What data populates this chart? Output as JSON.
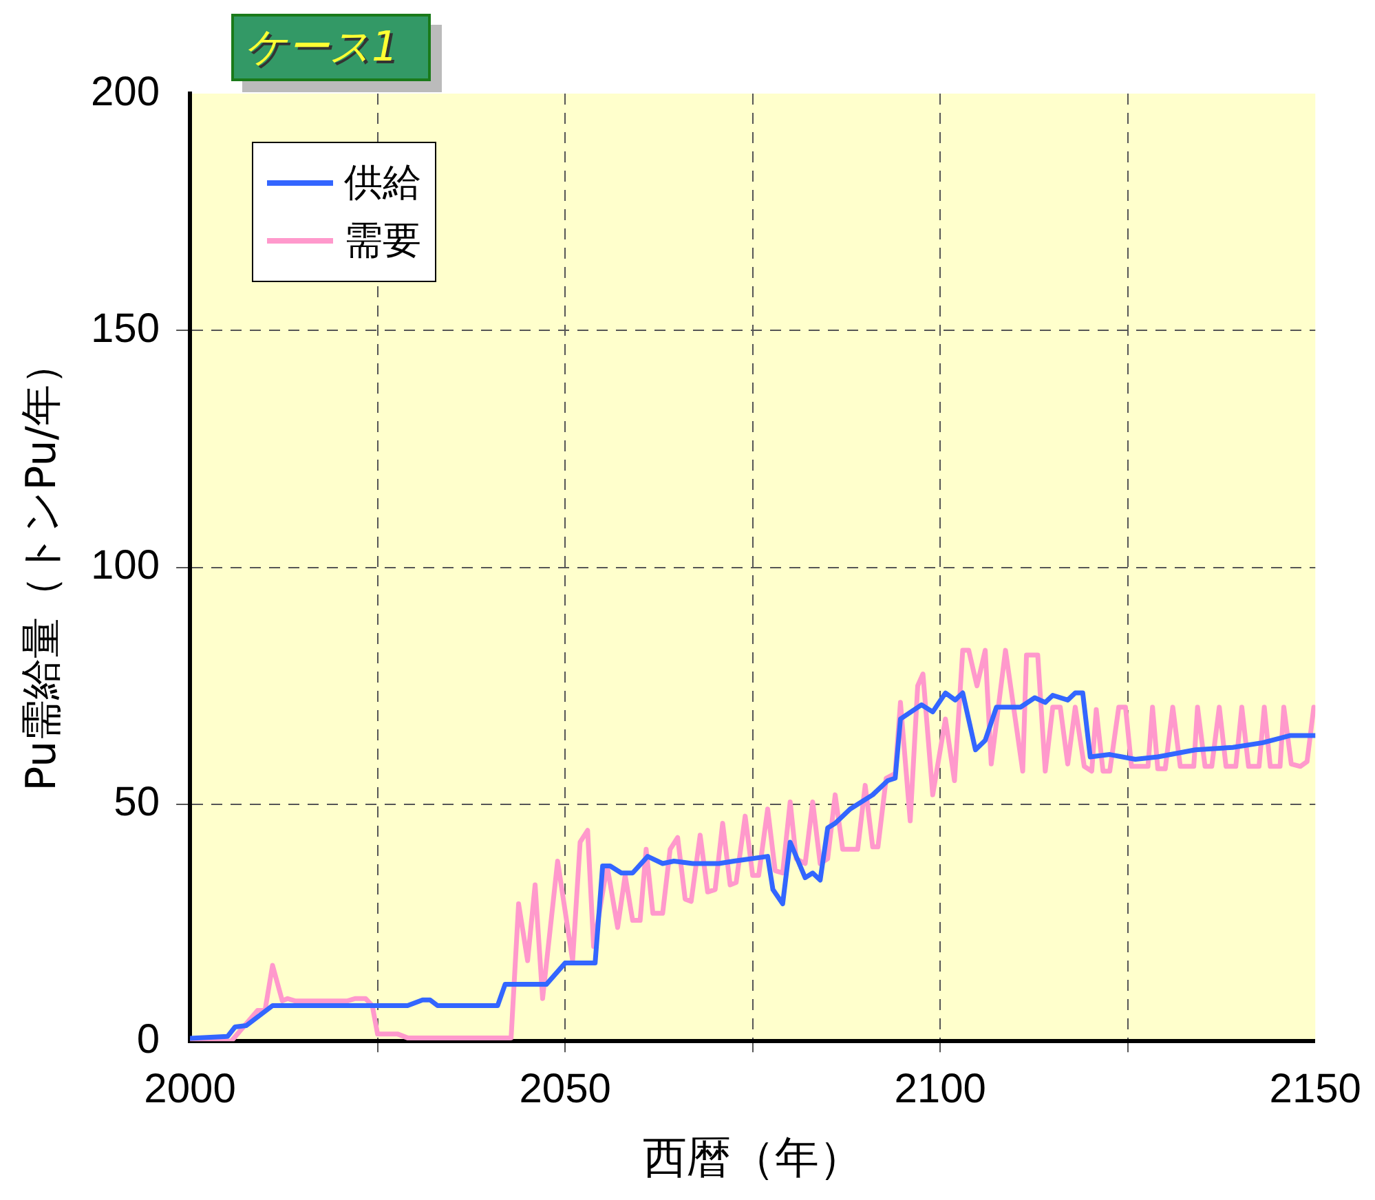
{
  "chart_data": {
    "type": "line",
    "title": "ケース1",
    "xlabel": "西暦（年）",
    "ylabel": "Pu需給量（トンPu/年）",
    "xlim": [
      2000,
      2150
    ],
    "xticks": [
      2000,
      {
        "value": 2025,
        "label": null
      },
      2050,
      {
        "value": 2075,
        "label": null
      },
      2100,
      {
        "value": 2125,
        "label": null
      },
      2150
    ],
    "ylim": [
      0,
      200
    ],
    "yticks": [
      0,
      50,
      100,
      150,
      200
    ],
    "grid": true,
    "legend": "top left",
    "marker": "none",
    "line_style": "solid",
    "series": [
      {
        "name": "供給",
        "color": "#3366ff",
        "x": [
          2000,
          2005,
          2006,
          2007.5,
          2011,
          2029,
          2031,
          2032,
          2033,
          2041,
          2042,
          2047.5,
          2050,
          2054,
          2055,
          2056,
          2057.5,
          2059,
          2061,
          2063,
          2064.5,
          2067,
          2070.5,
          2072.5,
          2077,
          2077.7,
          2079,
          2080,
          2082,
          2083,
          2084,
          2085,
          2086,
          2088,
          2091,
          2093,
          2094,
          2094.7,
          2097.5,
          2099,
          2100.7,
          2102,
          2103,
          2104.7,
          2106,
          2107.5,
          2110.7,
          2112.6,
          2114,
          2115,
          2117,
          2118,
          2119,
          2120,
          2122.6,
          2126,
          2129,
          2134,
          2139,
          2143,
          2146.6,
          2150
        ],
        "values": [
          0.6,
          1,
          3,
          3.3,
          7.5,
          7.5,
          8.7,
          8.7,
          7.5,
          7.5,
          12,
          12,
          16.5,
          16.5,
          37,
          37,
          35.5,
          35.5,
          39,
          37.5,
          38,
          37.5,
          37.5,
          38,
          39,
          32,
          29,
          42,
          34.5,
          35.5,
          34,
          45,
          46,
          49,
          52,
          55,
          55.5,
          68,
          71,
          69.5,
          73.5,
          72,
          73.5,
          61.5,
          63.5,
          70.5,
          70.5,
          72.5,
          71.5,
          73,
          72,
          73.5,
          73.5,
          60,
          60.5,
          59.5,
          60,
          61.5,
          62,
          63,
          64.5,
          64.5
        ]
      },
      {
        "name": "需要",
        "color": "#ff99cc",
        "x": [
          2000,
          2005.5,
          2009,
          2010,
          2011,
          2012.3,
          2013,
          2014,
          2021,
          2022,
          2023.4,
          2024.3,
          2025,
          2027.7,
          2029,
          2042.8,
          2043.8,
          2045,
          2046,
          2047,
          2049,
          2051,
          2052,
          2053,
          2053.8,
          2055.6,
          2057,
          2058,
          2059,
          2060,
          2060.8,
          2061.7,
          2063,
          2064,
          2065,
          2066,
          2066.8,
          2068,
          2069,
          2070,
          2071,
          2072,
          2072.8,
          2074,
          2075,
          2075.8,
          2077,
          2078,
          2079,
          2080,
          2080.8,
          2082,
          2083,
          2084,
          2085,
          2086,
          2087,
          2089,
          2090,
          2091,
          2091.7,
          2092.8,
          2094,
          2094.7,
          2096,
          2097,
          2097.7,
          2099,
          2100.7,
          2101.9,
          2103,
          2103.8,
          2104.9,
          2106,
          2106.8,
          2108.7,
          2111,
          2111.5,
          2113,
          2114,
          2115,
          2116,
          2117,
          2118,
          2119.2,
          2120.2,
          2120.8,
          2121.7,
          2122.6,
          2123.8,
          2124.7,
          2125.5,
          2127.7,
          2128.3,
          2129,
          2130,
          2131,
          2132,
          2133.8,
          2134.3,
          2135.3,
          2136.2,
          2137.2,
          2138.1,
          2139.4,
          2140.2,
          2141.1,
          2142.5,
          2143.2,
          2144,
          2145.3,
          2145.8,
          2146.8,
          2148,
          2148.9,
          2149.8
        ],
        "values": [
          0,
          0,
          6.5,
          6.5,
          16,
          8.5,
          9,
          8.5,
          8.5,
          9,
          9,
          7.5,
          1.5,
          1.5,
          0.7,
          0.7,
          29,
          17,
          33,
          9,
          38,
          17,
          42,
          44.5,
          20,
          37,
          24,
          35,
          25.5,
          25.5,
          40.5,
          27,
          27,
          40.5,
          43,
          30,
          29.5,
          43.5,
          31.5,
          32,
          46,
          33,
          33.5,
          47.5,
          35,
          35,
          49,
          36,
          35.5,
          50.5,
          38.5,
          37.5,
          50.5,
          37.5,
          38.5,
          52,
          40.5,
          40.5,
          54,
          41,
          41,
          55.5,
          56.5,
          71.5,
          46.5,
          75,
          77.5,
          52,
          68,
          55,
          82.5,
          82.5,
          75,
          82.5,
          58.5,
          82.5,
          57,
          81.5,
          81.5,
          57,
          70.5,
          70.5,
          58.5,
          70.5,
          58,
          57,
          70,
          57,
          57,
          70.5,
          70.5,
          58,
          58,
          70.5,
          57.5,
          57.5,
          70.5,
          58,
          58,
          70.5,
          58,
          58,
          70.5,
          58,
          58,
          70.5,
          58,
          58,
          70.5,
          58,
          58,
          70.5,
          58.5,
          58,
          59,
          70.5
        ]
      }
    ]
  }
}
